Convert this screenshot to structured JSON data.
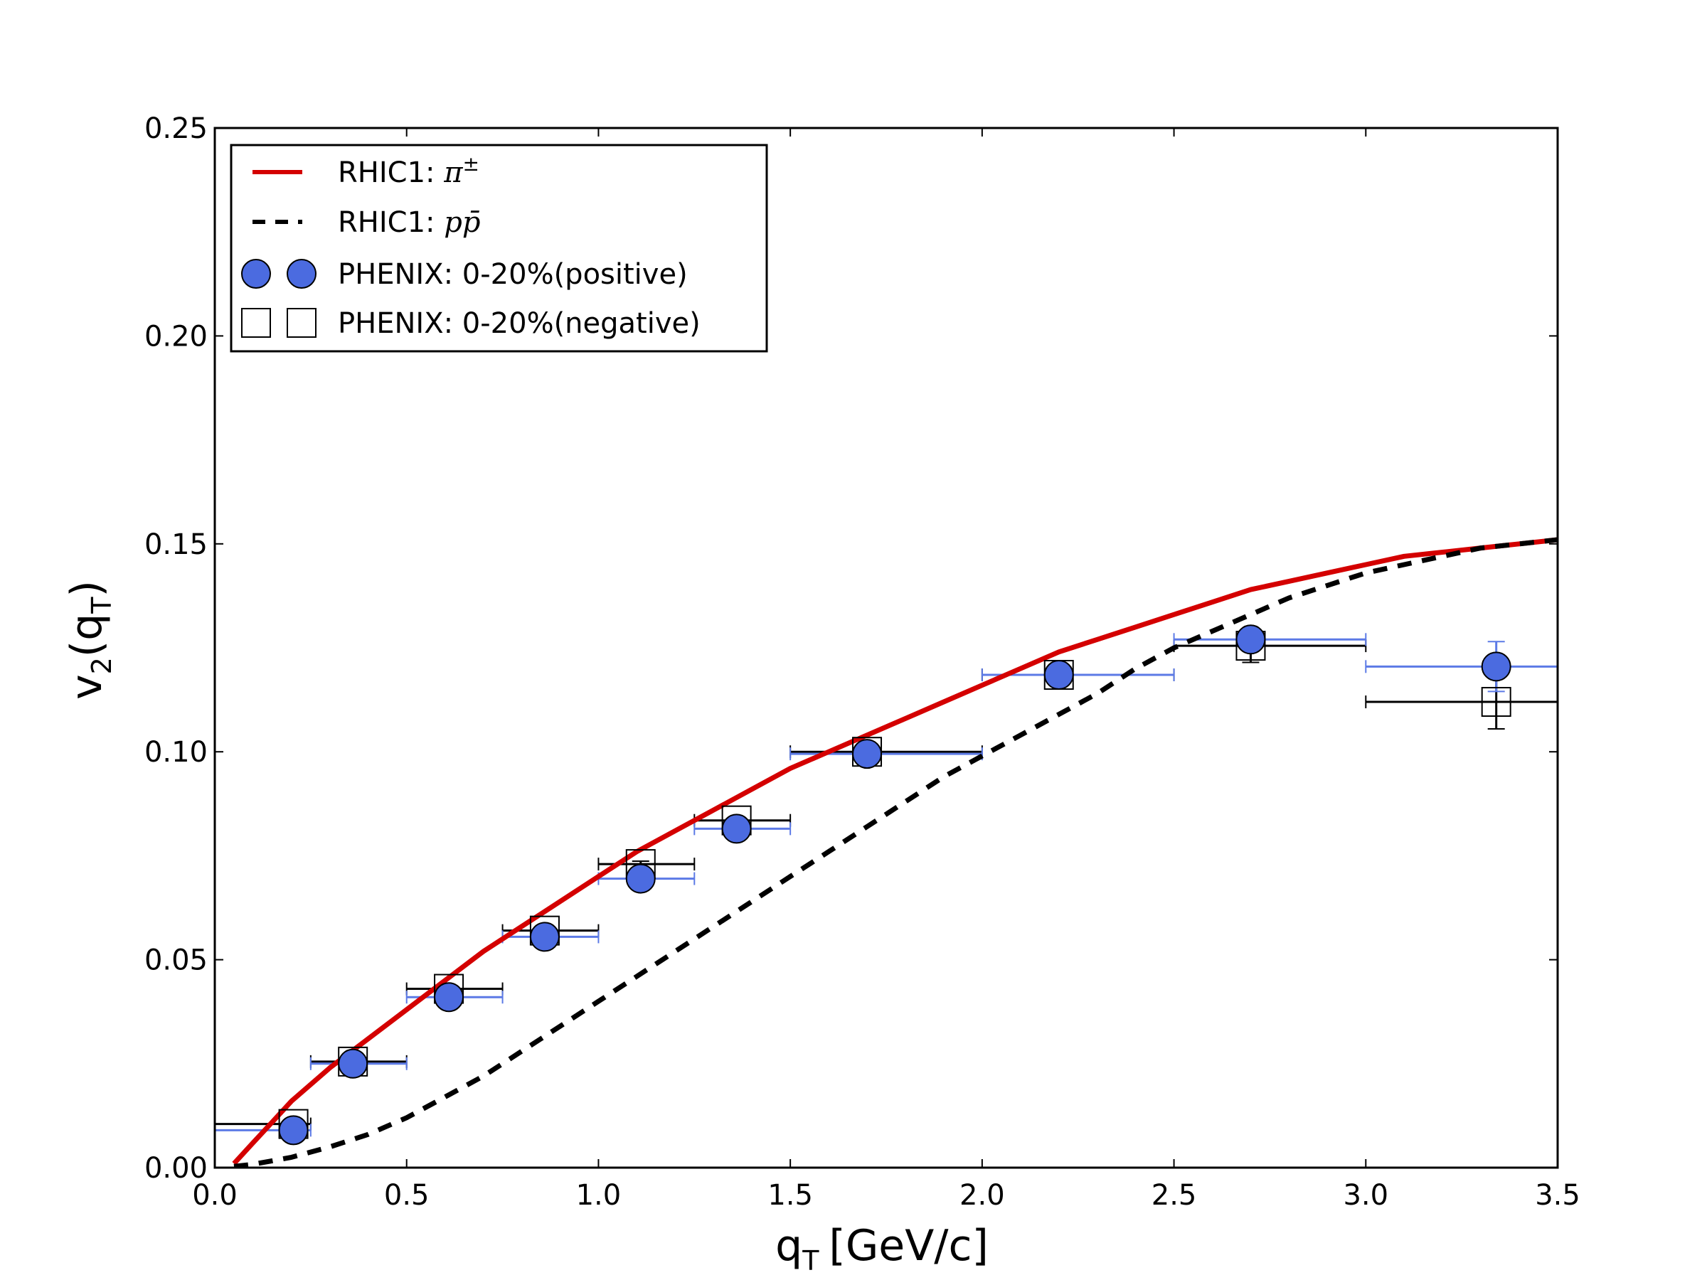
{
  "chart_data": {
    "type": "scatter",
    "title": "",
    "xlabel": {
      "main": "q",
      "sub": "T",
      "unit": "[GeV/c]"
    },
    "ylabel": {
      "main": "v",
      "sub": "2",
      "arg": "q",
      "argsub": "T"
    },
    "xlim": [
      0.0,
      3.5
    ],
    "ylim": [
      0.0,
      0.25
    ],
    "xticks": [
      "0.0",
      "0.5",
      "1.0",
      "1.5",
      "2.0",
      "2.5",
      "3.0",
      "3.5"
    ],
    "yticks": [
      "0.00",
      "0.05",
      "0.10",
      "0.15",
      "0.20",
      "0.25"
    ],
    "grid": false,
    "legend_position": "top-left",
    "series": [
      {
        "name": "RHIC1: π±",
        "legend_prefix": "RHIC1: ",
        "legend_math": "π",
        "legend_sup": "±",
        "kind": "line",
        "style": "solid",
        "color": "#d40000",
        "x": [
          0.05,
          0.1,
          0.15,
          0.2,
          0.3,
          0.4,
          0.5,
          0.6,
          0.7,
          0.8,
          0.9,
          1.0,
          1.1,
          1.2,
          1.3,
          1.4,
          1.5,
          1.6,
          1.7,
          1.8,
          1.9,
          2.0,
          2.1,
          2.2,
          2.3,
          2.4,
          2.5,
          2.6,
          2.7,
          2.8,
          2.9,
          3.0,
          3.1,
          3.2,
          3.3,
          3.4,
          3.5
        ],
        "y": [
          0.001,
          0.006,
          0.011,
          0.016,
          0.024,
          0.031,
          0.038,
          0.045,
          0.052,
          0.058,
          0.064,
          0.07,
          0.076,
          0.081,
          0.086,
          0.091,
          0.096,
          0.1,
          0.104,
          0.108,
          0.112,
          0.116,
          0.12,
          0.124,
          0.127,
          0.13,
          0.133,
          0.136,
          0.139,
          0.141,
          0.143,
          0.145,
          0.147,
          0.148,
          0.149,
          0.15,
          0.151
        ]
      },
      {
        "name": "RHIC1: pp̄",
        "legend_prefix": "RHIC1: ",
        "legend_math": "pp̄",
        "legend_sup": "",
        "kind": "line",
        "style": "dashed",
        "color": "#000000",
        "x": [
          0.05,
          0.1,
          0.2,
          0.3,
          0.4,
          0.5,
          0.6,
          0.7,
          0.8,
          0.9,
          1.0,
          1.1,
          1.2,
          1.3,
          1.4,
          1.5,
          1.6,
          1.7,
          1.8,
          1.9,
          2.0,
          2.1,
          2.2,
          2.3,
          2.4,
          2.5,
          2.6,
          2.7,
          2.8,
          2.9,
          3.0,
          3.1,
          3.2,
          3.3,
          3.4,
          3.5
        ],
        "y": [
          0.0003,
          0.0008,
          0.0025,
          0.005,
          0.008,
          0.012,
          0.017,
          0.022,
          0.028,
          0.034,
          0.04,
          0.046,
          0.052,
          0.058,
          0.064,
          0.07,
          0.076,
          0.082,
          0.088,
          0.094,
          0.099,
          0.104,
          0.109,
          0.114,
          0.12,
          0.125,
          0.129,
          0.133,
          0.137,
          0.14,
          0.143,
          0.145,
          0.147,
          0.149,
          0.15,
          0.151
        ]
      },
      {
        "name": "PHENIX: 0-20%(positive)",
        "kind": "points",
        "marker": "circle",
        "color": "#4b6be0",
        "points": [
          {
            "x": 0.205,
            "y": 0.009,
            "xlo": 0.0,
            "xhi": 0.25,
            "yerr": 0.0005
          },
          {
            "x": 0.36,
            "y": 0.025,
            "xlo": 0.25,
            "xhi": 0.5,
            "yerr": 0.0005
          },
          {
            "x": 0.61,
            "y": 0.041,
            "xlo": 0.5,
            "xhi": 0.75,
            "yerr": 0.0005
          },
          {
            "x": 0.86,
            "y": 0.0555,
            "xlo": 0.75,
            "xhi": 1.0,
            "yerr": 0.0007
          },
          {
            "x": 1.11,
            "y": 0.0695,
            "xlo": 1.0,
            "xhi": 1.25,
            "yerr": 0.0007
          },
          {
            "x": 1.36,
            "y": 0.0815,
            "xlo": 1.25,
            "xhi": 1.5,
            "yerr": 0.0008
          },
          {
            "x": 1.7,
            "y": 0.0995,
            "xlo": 1.5,
            "xhi": 2.0,
            "yerr": 0.001
          },
          {
            "x": 2.2,
            "y": 0.1185,
            "xlo": 2.0,
            "xhi": 2.5,
            "yerr": 0.0015
          },
          {
            "x": 2.7,
            "y": 0.127,
            "xlo": 2.5,
            "xhi": 3.0,
            "yerr": 0.002
          },
          {
            "x": 3.34,
            "y": 0.1205,
            "xlo": 3.0,
            "xhi": 3.5,
            "yerr": 0.006
          }
        ]
      },
      {
        "name": "PHENIX: 0-20%(negative)",
        "kind": "points",
        "marker": "square",
        "color": "#000000",
        "points": [
          {
            "x": 0.205,
            "y": 0.0105,
            "xlo": 0.0,
            "xhi": 0.25,
            "yerr": 0.0005
          },
          {
            "x": 0.36,
            "y": 0.0255,
            "xlo": 0.25,
            "xhi": 0.5,
            "yerr": 0.0005
          },
          {
            "x": 0.61,
            "y": 0.043,
            "xlo": 0.5,
            "xhi": 0.75,
            "yerr": 0.0005
          },
          {
            "x": 0.86,
            "y": 0.057,
            "xlo": 0.75,
            "xhi": 1.0,
            "yerr": 0.0007
          },
          {
            "x": 1.11,
            "y": 0.073,
            "xlo": 1.0,
            "xhi": 1.25,
            "yerr": 0.0007
          },
          {
            "x": 1.36,
            "y": 0.0835,
            "xlo": 1.25,
            "xhi": 1.5,
            "yerr": 0.0008
          },
          {
            "x": 1.7,
            "y": 0.1,
            "xlo": 1.5,
            "xhi": 2.0,
            "yerr": 0.001
          },
          {
            "x": 2.2,
            "y": 0.1185,
            "xlo": 2.0,
            "xhi": 2.5,
            "yerr": 0.0015
          },
          {
            "x": 2.7,
            "y": 0.1255,
            "xlo": 2.5,
            "xhi": 3.0,
            "yerr": 0.004
          },
          {
            "x": 3.34,
            "y": 0.112,
            "xlo": 3.0,
            "xhi": 3.5,
            "yerr": 0.0065
          }
        ]
      }
    ]
  }
}
